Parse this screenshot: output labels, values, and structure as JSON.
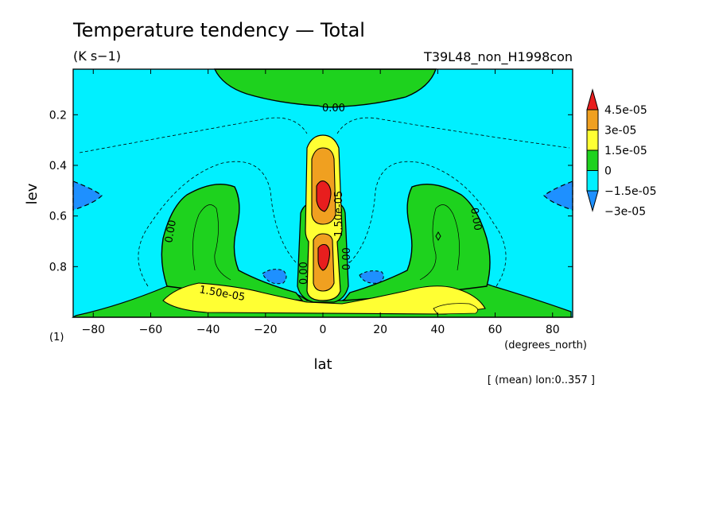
{
  "chart_data": {
    "type": "heatmap",
    "title": "Temperature tendency — Total",
    "units": "(K s−1)",
    "dataset": "T39L48_non_H1998con",
    "xlabel": "lat",
    "xunits": "(degrees_north)",
    "ylabel": "lev",
    "yunits": "(1)",
    "footnote": "[ (mean) lon:0..357 ]",
    "xlim": [
      -87,
      87
    ],
    "ylim": [
      1.0,
      0.02
    ],
    "xticks": [
      -80,
      -60,
      -40,
      -20,
      0,
      20,
      40,
      60,
      80
    ],
    "yticks": [
      0.2,
      0.4,
      0.6,
      0.8
    ],
    "colorbar": {
      "levels": [
        -3e-05,
        -1.5e-05,
        0,
        1.5e-05,
        3e-05,
        4.5e-05
      ],
      "labels": [
        "4.5e-05",
        "3e-05",
        "1.5e-05",
        "0",
        "−1.5e-05",
        "−3e-05"
      ],
      "colors": [
        "#1e90ff",
        "#00f0ff",
        "#1ed21e",
        "#ffff33",
        "#f0a020",
        "#e81e1e"
      ]
    },
    "contour_labels": [
      "0.00",
      "0.00",
      "0.00",
      "0.00",
      "0.00",
      "1.50e-05",
      "1.50e-05"
    ],
    "regions": [
      {
        "name": "upper-stratosphere-positive",
        "lat": [
          -38,
          40
        ],
        "lev": [
          0.02,
          0.16
        ],
        "sign": "positive"
      },
      {
        "name": "equatorial-column",
        "lat": [
          -10,
          10
        ],
        "lev": [
          0.25,
          0.98
        ],
        "peak": 4.5e-05
      },
      {
        "name": "southern-midlat-positive",
        "lat": [
          -60,
          -30
        ],
        "lev": [
          0.45,
          1.0
        ],
        "sign": "positive"
      },
      {
        "name": "northern-midlat-positive",
        "lat": [
          30,
          60
        ],
        "lev": [
          0.45,
          1.0
        ],
        "sign": "positive"
      },
      {
        "name": "low-level-positive-band",
        "lat": [
          -50,
          60
        ],
        "lev": [
          0.86,
          0.98
        ],
        "value": 1.5e-05
      },
      {
        "name": "polar-negative-sh",
        "lat": [
          -87,
          -80
        ],
        "lev": [
          0.45,
          0.58
        ],
        "value": -3e-05
      },
      {
        "name": "polar-negative-nh",
        "lat": [
          80,
          87
        ],
        "lev": [
          0.45,
          0.58
        ],
        "value": -3e-05
      }
    ]
  }
}
